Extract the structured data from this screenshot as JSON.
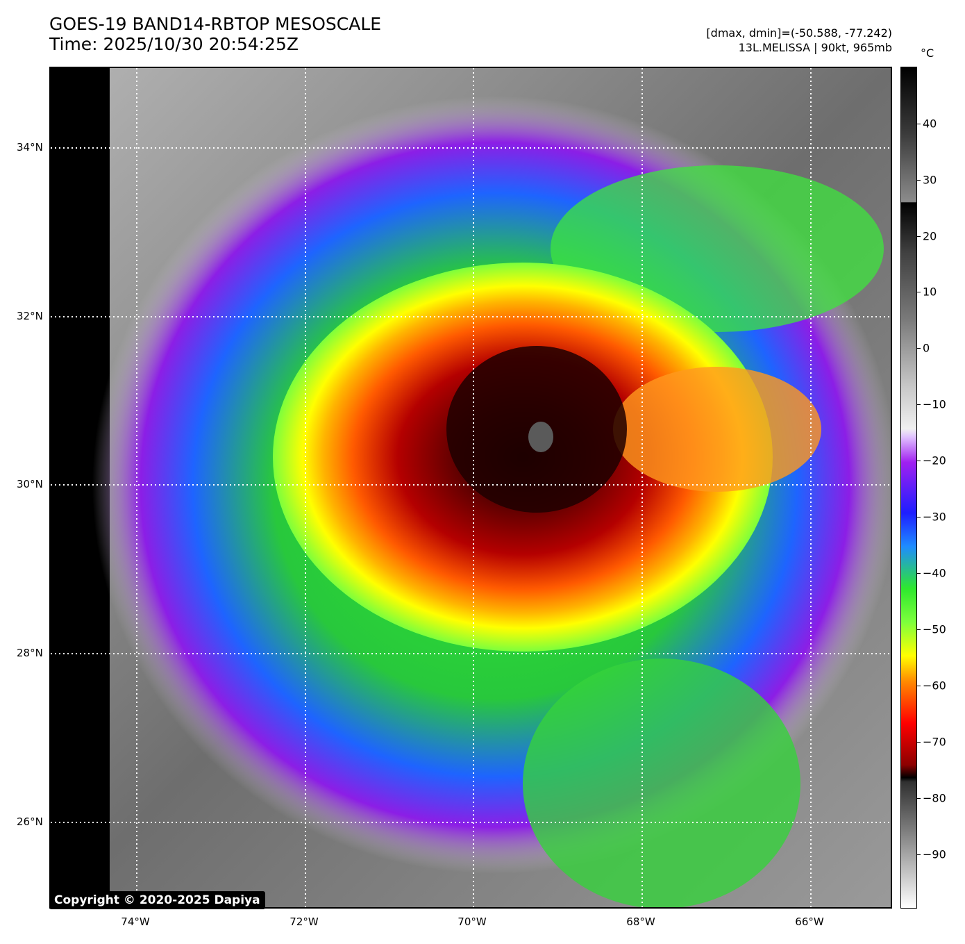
{
  "title": {
    "line1": "GOES-19 BAND14-RBTOP MESOSCALE",
    "line2": "Time: 2025/10/30 20:54:25Z"
  },
  "meta": {
    "range": "[dmax, dmin]=(-50.588, -77.242)",
    "storm": "13L.MELISSA | 90kt, 965mb"
  },
  "map": {
    "lat_labels": [
      "34°N",
      "32°N",
      "30°N",
      "28°N",
      "26°N"
    ],
    "lon_labels": [
      "74°W",
      "72°W",
      "70°W",
      "68°W",
      "66°W"
    ],
    "copyright": "Copyright © 2020-2025 Dapiya"
  },
  "colorbar": {
    "unit": "°C",
    "ticks": [
      "40",
      "30",
      "20",
      "10",
      "0",
      "−10",
      "−20",
      "−30",
      "−40",
      "−50",
      "−60",
      "−70",
      "−80",
      "−90"
    ]
  },
  "colors": {
    "cold_core": "#2a0000",
    "red": "#c80000",
    "orange": "#ff8c00",
    "yellow": "#ffff00",
    "green": "#2ee82e",
    "blue": "#1e3cff",
    "purple": "#a020f0",
    "gray_cloud": "#8a8a8a"
  }
}
